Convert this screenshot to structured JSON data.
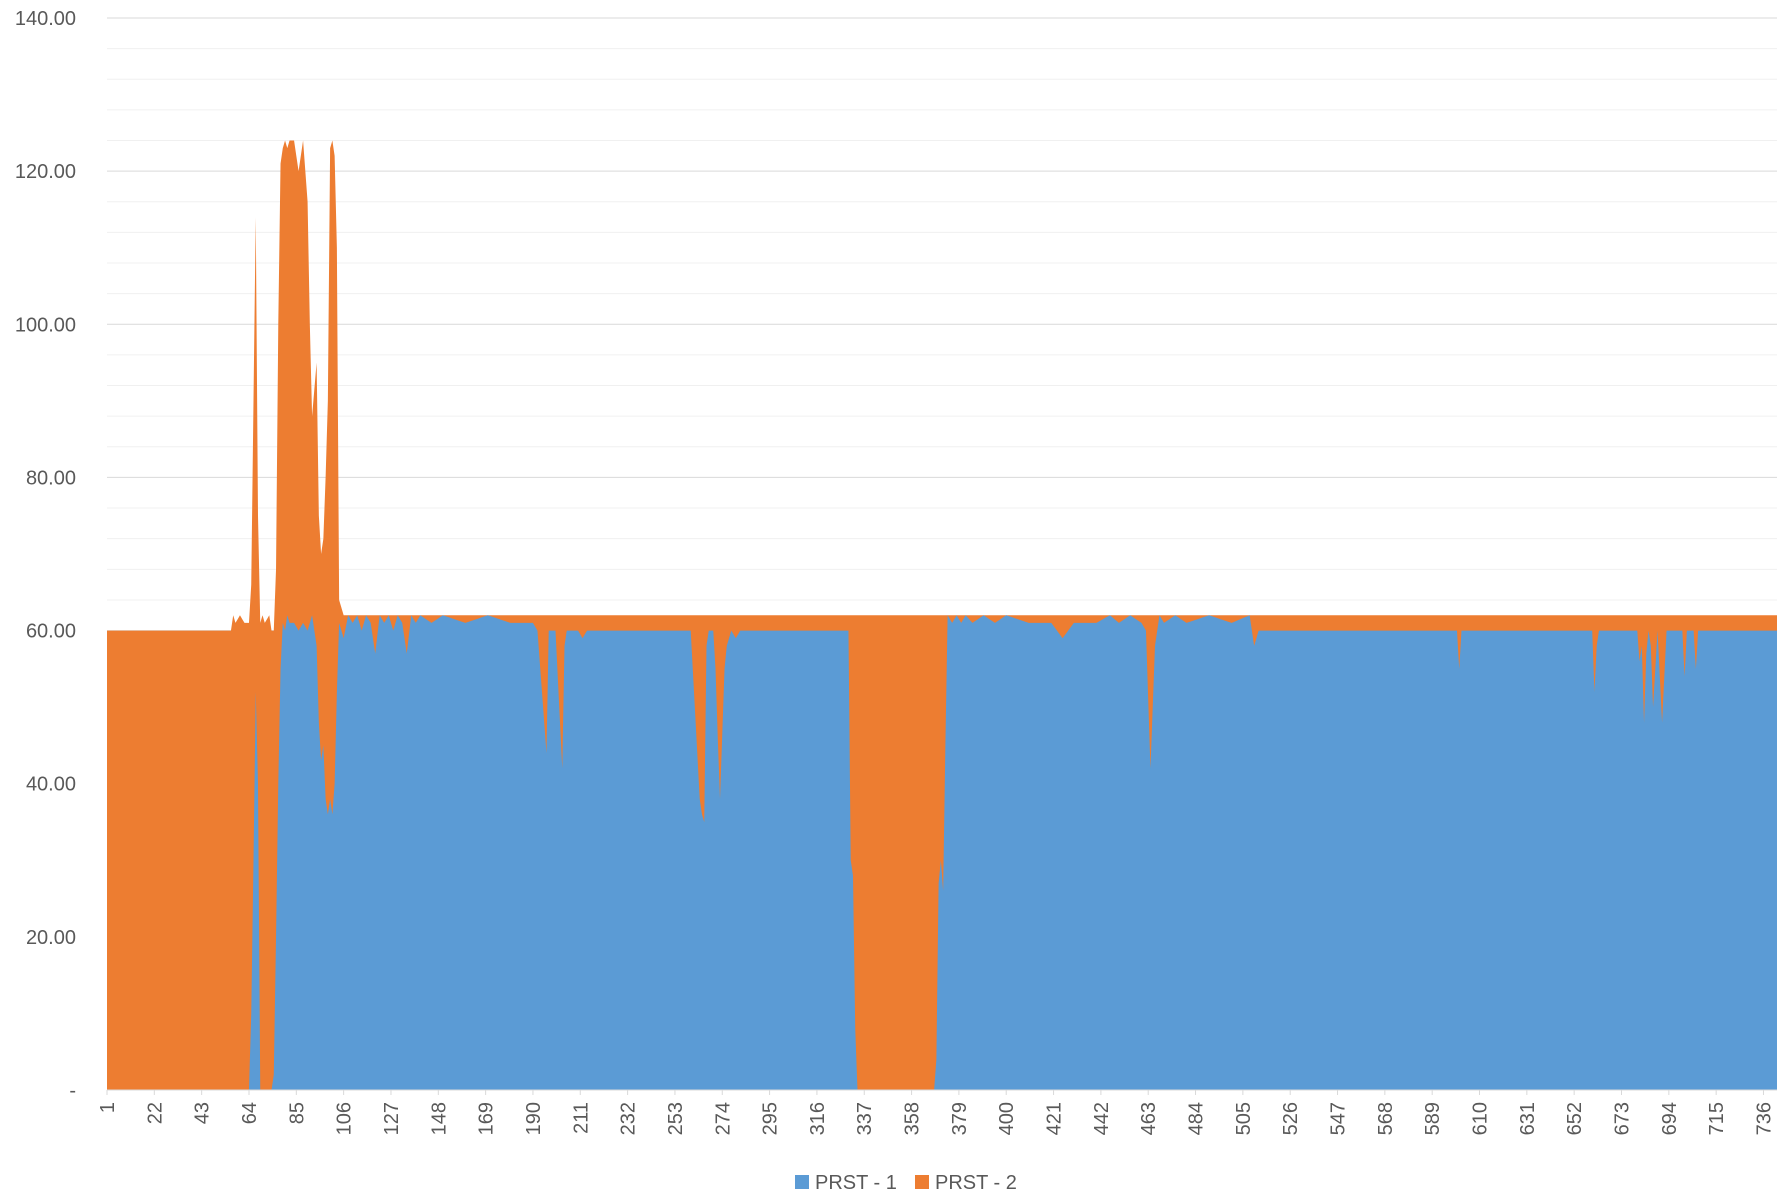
{
  "chart_data": {
    "type": "area",
    "stacked": true,
    "title": "",
    "xlabel": "",
    "ylabel": "",
    "ylim": [
      0,
      140
    ],
    "xlim": [
      1,
      742
    ],
    "grid": true,
    "legend_position": "bottom",
    "y_ticks": [
      0,
      20,
      40,
      60,
      80,
      100,
      120,
      140
    ],
    "y_tick_labels": [
      "-",
      "20.00",
      "40.00",
      "60.00",
      "80.00",
      "100.00",
      "120.00",
      "140.00"
    ],
    "x_tick_labels": [
      "1",
      "22",
      "43",
      "64",
      "85",
      "106",
      "127",
      "148",
      "169",
      "190",
      "211",
      "232",
      "253",
      "274",
      "295",
      "316",
      "337",
      "358",
      "379",
      "400",
      "421",
      "442",
      "463",
      "484",
      "505",
      "526",
      "547",
      "568",
      "589",
      "610",
      "631",
      "652",
      "673",
      "694",
      "715",
      "736"
    ],
    "series": [
      {
        "name": "PRST - 1",
        "color": "#5B9BD5",
        "points": [
          [
            1,
            0
          ],
          [
            64,
            0
          ],
          [
            65,
            10
          ],
          [
            66,
            30
          ],
          [
            67,
            52
          ],
          [
            68,
            40
          ],
          [
            69,
            0
          ],
          [
            74,
            0
          ],
          [
            75,
            2
          ],
          [
            76,
            20
          ],
          [
            77,
            40
          ],
          [
            78,
            55
          ],
          [
            79,
            61
          ],
          [
            80,
            60
          ],
          [
            81,
            62
          ],
          [
            82,
            61
          ],
          [
            84,
            61
          ],
          [
            86,
            60
          ],
          [
            88,
            61
          ],
          [
            90,
            60
          ],
          [
            92,
            62
          ],
          [
            94,
            58
          ],
          [
            95,
            48
          ],
          [
            96,
            43
          ],
          [
            97,
            45
          ],
          [
            98,
            38
          ],
          [
            99,
            36
          ],
          [
            100,
            38
          ],
          [
            101,
            36
          ],
          [
            102,
            40
          ],
          [
            103,
            52
          ],
          [
            104,
            61
          ],
          [
            106,
            59
          ],
          [
            108,
            62
          ],
          [
            110,
            61
          ],
          [
            112,
            62
          ],
          [
            114,
            60
          ],
          [
            116,
            62
          ],
          [
            118,
            61
          ],
          [
            120,
            57
          ],
          [
            122,
            62
          ],
          [
            124,
            61
          ],
          [
            126,
            62
          ],
          [
            128,
            60
          ],
          [
            130,
            62
          ],
          [
            132,
            61
          ],
          [
            134,
            57
          ],
          [
            136,
            62
          ],
          [
            138,
            61
          ],
          [
            140,
            62
          ],
          [
            145,
            61
          ],
          [
            150,
            62
          ],
          [
            160,
            61
          ],
          [
            170,
            62
          ],
          [
            180,
            61
          ],
          [
            190,
            61
          ],
          [
            192,
            60
          ],
          [
            195,
            48
          ],
          [
            196,
            44
          ],
          [
            197,
            60
          ],
          [
            200,
            60
          ],
          [
            203,
            42
          ],
          [
            204,
            58
          ],
          [
            205,
            60
          ],
          [
            210,
            60
          ],
          [
            212,
            59
          ],
          [
            214,
            60
          ],
          [
            260,
            60
          ],
          [
            264,
            38
          ],
          [
            265,
            36
          ],
          [
            266,
            35
          ],
          [
            267,
            58
          ],
          [
            268,
            60
          ],
          [
            270,
            60
          ],
          [
            271,
            55
          ],
          [
            272,
            46
          ],
          [
            273,
            38
          ],
          [
            275,
            55
          ],
          [
            276,
            58
          ],
          [
            278,
            60
          ],
          [
            280,
            59
          ],
          [
            282,
            60
          ],
          [
            330,
            60
          ],
          [
            331,
            30
          ],
          [
            332,
            28
          ],
          [
            333,
            8
          ],
          [
            334,
            0
          ],
          [
            368,
            0
          ],
          [
            369,
            4
          ],
          [
            370,
            27
          ],
          [
            371,
            30
          ],
          [
            372,
            26
          ],
          [
            373,
            45
          ],
          [
            374,
            62
          ],
          [
            376,
            61
          ],
          [
            378,
            62
          ],
          [
            380,
            61
          ],
          [
            382,
            62
          ],
          [
            385,
            61
          ],
          [
            390,
            62
          ],
          [
            395,
            61
          ],
          [
            400,
            62
          ],
          [
            410,
            61
          ],
          [
            420,
            61
          ],
          [
            425,
            59
          ],
          [
            430,
            61
          ],
          [
            440,
            61
          ],
          [
            446,
            62
          ],
          [
            450,
            61
          ],
          [
            455,
            62
          ],
          [
            460,
            61
          ],
          [
            462,
            60
          ],
          [
            464,
            42
          ],
          [
            466,
            58
          ],
          [
            468,
            62
          ],
          [
            470,
            61
          ],
          [
            475,
            62
          ],
          [
            480,
            61
          ],
          [
            490,
            62
          ],
          [
            500,
            61
          ],
          [
            508,
            62
          ],
          [
            510,
            58
          ],
          [
            512,
            60
          ],
          [
            600,
            60
          ],
          [
            601,
            55
          ],
          [
            602,
            60
          ],
          [
            660,
            60
          ],
          [
            661,
            52
          ],
          [
            662,
            58
          ],
          [
            663,
            60
          ],
          [
            680,
            60
          ],
          [
            681,
            56
          ],
          [
            682,
            58
          ],
          [
            683,
            48
          ],
          [
            684,
            57
          ],
          [
            685,
            60
          ],
          [
            686,
            58
          ],
          [
            687,
            50
          ],
          [
            688,
            55
          ],
          [
            689,
            60
          ],
          [
            690,
            54
          ],
          [
            691,
            48
          ],
          [
            692,
            54
          ],
          [
            693,
            60
          ],
          [
            700,
            60
          ],
          [
            701,
            54
          ],
          [
            702,
            60
          ],
          [
            705,
            60
          ],
          [
            706,
            55
          ],
          [
            707,
            60
          ],
          [
            742,
            60
          ]
        ]
      },
      {
        "name": "PRST - 2",
        "color": "#ED7D31",
        "points": [
          [
            1,
            60
          ],
          [
            56,
            60
          ],
          [
            57,
            62
          ],
          [
            58,
            61
          ],
          [
            60,
            62
          ],
          [
            62,
            61
          ],
          [
            64,
            61
          ],
          [
            65,
            66
          ],
          [
            66,
            90
          ],
          [
            67,
            114
          ],
          [
            68,
            75
          ],
          [
            69,
            61
          ],
          [
            70,
            62
          ],
          [
            71,
            61
          ],
          [
            73,
            62
          ],
          [
            74,
            60
          ],
          [
            75,
            60
          ],
          [
            76,
            68
          ],
          [
            77,
            100
          ],
          [
            78,
            121
          ],
          [
            79,
            123
          ],
          [
            80,
            124
          ],
          [
            81,
            123
          ],
          [
            82,
            124
          ],
          [
            84,
            124
          ],
          [
            86,
            120
          ],
          [
            88,
            124
          ],
          [
            90,
            116
          ],
          [
            91,
            100
          ],
          [
            92,
            88
          ],
          [
            94,
            95
          ],
          [
            95,
            75
          ],
          [
            96,
            70
          ],
          [
            97,
            72
          ],
          [
            98,
            80
          ],
          [
            99,
            90
          ],
          [
            100,
            123
          ],
          [
            101,
            124
          ],
          [
            102,
            122
          ],
          [
            103,
            110
          ],
          [
            104,
            64
          ],
          [
            106,
            62
          ],
          [
            742,
            62
          ]
        ]
      }
    ]
  },
  "legend": [
    {
      "label": "PRST - 1",
      "color": "#5B9BD5"
    },
    {
      "label": "PRST - 2",
      "color": "#ED7D31"
    }
  ]
}
